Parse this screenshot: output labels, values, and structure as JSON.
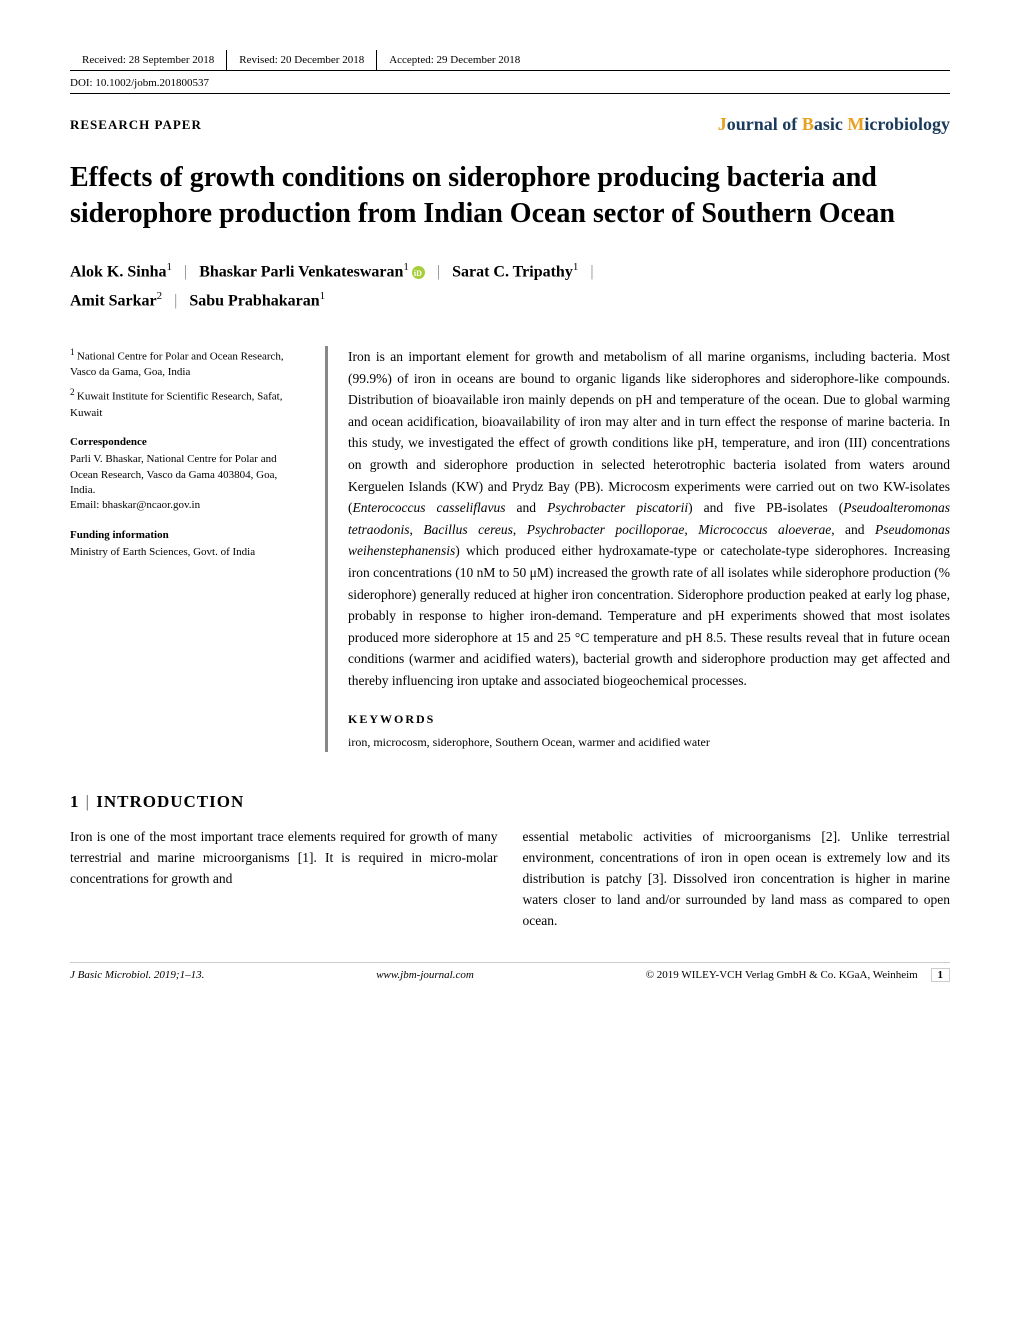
{
  "meta": {
    "received": "Received: 28 September 2018",
    "revised": "Revised: 20 December 2018",
    "accepted": "Accepted: 29 December 2018",
    "doi": "DOI: 10.1002/jobm.201800537",
    "paper_type": "RESEARCH PAPER",
    "journal_j": "J",
    "journal_text1": "ournal of ",
    "journal_b": "B",
    "journal_text2": "asic ",
    "journal_m": "M",
    "journal_text3": "icrobiology"
  },
  "title": "Effects of growth conditions on siderophore producing bacteria and siderophore production from Indian Ocean sector of Southern Ocean",
  "authors": {
    "a1": "Alok K. Sinha",
    "a1_sup": "1",
    "a2": "Bhaskar Parli Venkateswaran",
    "a2_sup": "1",
    "a3": "Sarat C. Tripathy",
    "a3_sup": "1",
    "a4": "Amit Sarkar",
    "a4_sup": "2",
    "a5": "Sabu Prabhakaran",
    "a5_sup": "1"
  },
  "affiliations": {
    "aff1_sup": "1 ",
    "aff1": "National Centre for Polar and Ocean Research, Vasco da Gama, Goa, India",
    "aff2_sup": "2 ",
    "aff2": "Kuwait Institute for Scientific Research, Safat, Kuwait",
    "corr_head": "Correspondence",
    "corr_text": "Parli V. Bhaskar, National Centre for Polar and Ocean Research, Vasco da Gama 403804, Goa, India.",
    "corr_email": "Email: bhaskar@ncaor.gov.in",
    "fund_head": "Funding information",
    "fund_text": "Ministry of Earth Sciences, Govt. of India"
  },
  "abstract": {
    "p1": "Iron is an important element for growth and metabolism of all marine organisms, including bacteria. Most (99.9%) of iron in oceans are bound to organic ligands like siderophores and siderophore-like compounds. Distribution of bioavailable iron mainly depends on pH and temperature of the ocean. Due to global warming and ocean acidification, bioavailability of iron may alter and in turn effect the response of marine bacteria. In this study, we investigated the effect of growth conditions like pH, temperature, and iron (III) concentrations on growth and siderophore production in selected heterotrophic bacteria isolated from waters around Kerguelen Islands (KW) and Prydz Bay (PB). Microcosm experiments were carried out on two KW-isolates (",
    "sp1": "Enterococcus casseliflavus",
    "p2": " and ",
    "sp2": "Psychrobacter piscatorii",
    "p3": ") and five PB-isolates (",
    "sp3": "Pseudoalteromonas tetraodonis",
    "p4": ", ",
    "sp4": "Bacillus cereus",
    "p5": ", ",
    "sp5": "Psychrobacter pocilloporae",
    "p6": ", ",
    "sp6": "Micrococcus aloeverae",
    "p7": ", and ",
    "sp7": "Pseudomonas weihenstephanensis",
    "p8": ") which produced either hydroxamate-type or catecholate-type siderophores. Increasing iron concentrations (10 nM to 50 μM) increased the growth rate of all isolates while siderophore production (% siderophore) generally reduced at higher iron concentration. Siderophore production peaked at early log phase, probably in response to higher iron-demand. Temperature and pH experiments showed that most isolates produced more siderophore at 15 and 25 °C temperature and pH 8.5. These results reveal that in future ocean conditions (warmer and acidified waters), bacterial growth and siderophore production may get affected and thereby influencing iron uptake and associated biogeochemical processes.",
    "kw_head": "KEYWORDS",
    "kw_text": "iron, microcosm, siderophore, Southern Ocean, warmer and acidified water"
  },
  "intro": {
    "heading_num": "1",
    "heading": "INTRODUCTION",
    "col1": "Iron is one of the most important trace elements required for growth of many terrestrial and marine microorganisms [1]. It is required in micro-molar concentrations for growth and",
    "col2": "essential metabolic activities of microorganisms [2]. Unlike terrestrial environment, concentrations of iron in open ocean is extremely low and its distribution is patchy [3]. Dissolved iron concentration is higher in marine waters closer to land and/or surrounded by land mass as compared to open ocean."
  },
  "footer": {
    "left": "J Basic Microbiol. 2019;1–13.",
    "center": "www.jbm-journal.com",
    "right": "© 2019 WILEY-VCH Verlag GmbH & Co. KGaA, Weinheim",
    "page": "1"
  },
  "styling": {
    "body_width": 1020,
    "body_padding": "50px 70px",
    "background_color": "#ffffff",
    "text_color": "#000000",
    "title_fontsize": 28,
    "author_fontsize": 16,
    "abstract_fontsize": 13.5,
    "sidebar_fontsize": 11,
    "journal_accent_color": "#e8a020",
    "journal_text_color": "#1a3a5a",
    "orcid_color": "#a6ce39",
    "abstract_border_color": "#888888",
    "abstract_border_width": 3,
    "left_col_width": 230,
    "col_gap": 25
  }
}
